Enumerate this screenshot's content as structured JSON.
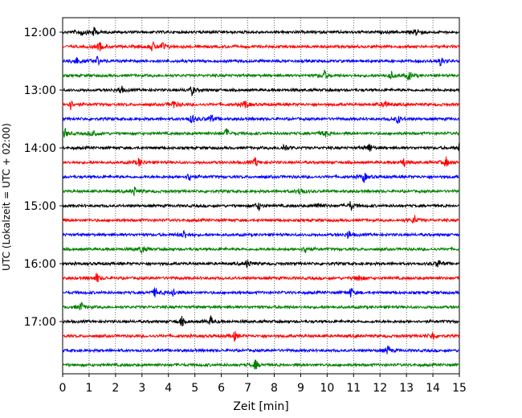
{
  "chart_data": {
    "type": "line",
    "title": "",
    "xlabel": "Zeit  [min]",
    "ylabel": "UTC (Lokalzeit = UTC + 02:00)",
    "xlim": [
      0,
      15
    ],
    "x_ticks": [
      0,
      1,
      2,
      3,
      4,
      5,
      6,
      7,
      8,
      9,
      10,
      11,
      12,
      13,
      14,
      15
    ],
    "x_grid": "dotted vertical lines at each minute",
    "y_tick_labels": [
      "12:00",
      "13:00",
      "14:00",
      "15:00",
      "16:00",
      "17:00"
    ],
    "trace_interval_minutes": 15,
    "color_cycle": [
      "#000000",
      "#ff0000",
      "#0000ff",
      "#008000"
    ],
    "traces": [
      {
        "start": "12:00",
        "color": "#000000",
        "events_min": [
          0.7,
          1.2,
          13.4
        ]
      },
      {
        "start": "12:15",
        "color": "#ff0000",
        "events_min": [
          1.4,
          3.4,
          3.8
        ]
      },
      {
        "start": "12:30",
        "color": "#0000ff",
        "events_min": [
          0.5,
          1.3,
          14.3
        ]
      },
      {
        "start": "12:45",
        "color": "#008000",
        "events_min": [
          9.9,
          12.4,
          13.1
        ]
      },
      {
        "start": "13:00",
        "color": "#000000",
        "events_min": [
          2.2,
          4.9
        ]
      },
      {
        "start": "13:15",
        "color": "#ff0000",
        "events_min": [
          0.3,
          4.2,
          6.9,
          12.2
        ]
      },
      {
        "start": "13:30",
        "color": "#0000ff",
        "events_min": [
          4.9,
          5.6,
          12.7
        ]
      },
      {
        "start": "13:45",
        "color": "#008000",
        "events_min": [
          0.1,
          1.2,
          6.2,
          9.9
        ]
      },
      {
        "start": "14:00",
        "color": "#000000",
        "events_min": [
          8.4,
          11.6,
          15.0
        ]
      },
      {
        "start": "14:15",
        "color": "#ff0000",
        "events_min": [
          2.9,
          7.3,
          12.9,
          14.5
        ]
      },
      {
        "start": "14:30",
        "color": "#0000ff",
        "events_min": [
          4.8,
          11.4
        ]
      },
      {
        "start": "14:45",
        "color": "#008000",
        "events_min": [
          2.7,
          9.0
        ]
      },
      {
        "start": "15:00",
        "color": "#000000",
        "events_min": [
          7.4,
          9.7,
          10.9
        ]
      },
      {
        "start": "15:15",
        "color": "#ff0000",
        "events_min": [
          13.3
        ]
      },
      {
        "start": "15:30",
        "color": "#0000ff",
        "events_min": [
          4.6,
          10.8
        ]
      },
      {
        "start": "15:45",
        "color": "#008000",
        "events_min": [
          3.0,
          9.2
        ]
      },
      {
        "start": "16:00",
        "color": "#000000",
        "events_min": [
          7.0,
          14.2
        ]
      },
      {
        "start": "16:15",
        "color": "#ff0000",
        "events_min": [
          1.3,
          11.2
        ]
      },
      {
        "start": "16:30",
        "color": "#0000ff",
        "events_min": [
          3.5,
          4.2,
          10.9
        ]
      },
      {
        "start": "16:45",
        "color": "#008000",
        "events_min": [
          0.7
        ]
      },
      {
        "start": "17:00",
        "color": "#000000",
        "events_min": [
          4.5,
          5.6
        ]
      },
      {
        "start": "17:15",
        "color": "#ff0000",
        "events_min": [
          6.5,
          14.0
        ]
      },
      {
        "start": "17:30",
        "color": "#0000ff",
        "events_min": [
          12.3
        ]
      },
      {
        "start": "17:45",
        "color": "#008000",
        "events_min": [
          7.3
        ]
      }
    ]
  }
}
